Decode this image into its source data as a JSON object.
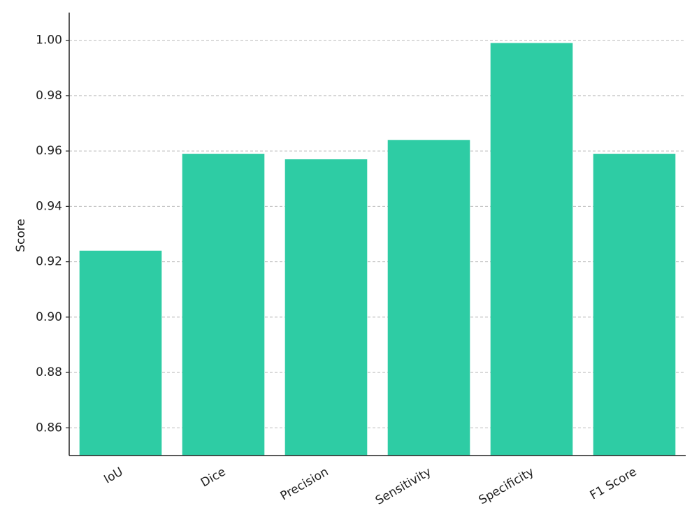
{
  "chart_data": {
    "type": "bar",
    "y_label": "Score",
    "categories": [
      "IoU",
      "Dice",
      "Precision",
      "Sensitivity",
      "Specificity",
      "F1 Score"
    ],
    "values": [
      0.924,
      0.959,
      0.957,
      0.964,
      0.999,
      0.959
    ],
    "color": "#2ecca4",
    "ylim": [
      0.85,
      1.01
    ],
    "yticks": [
      0.86,
      0.88,
      {
        "value": 0.9,
        "label": "0.90"
      },
      0.92,
      0.94,
      0.96,
      0.98,
      {
        "value": 1,
        "label": "1.00"
      }
    ],
    "grid": true
  }
}
